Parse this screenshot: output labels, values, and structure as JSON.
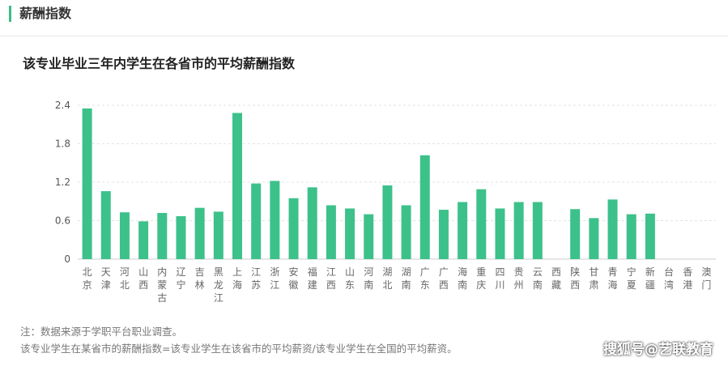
{
  "section": {
    "title": "薪酬指数"
  },
  "chart_data": {
    "type": "bar",
    "title": "该专业毕业三年内学生在各省市的平均薪酬指数",
    "categories": [
      "北京",
      "天津",
      "河北",
      "山西",
      "内蒙古",
      "辽宁",
      "吉林",
      "黑龙江",
      "上海",
      "江苏",
      "浙江",
      "安徽",
      "福建",
      "江西",
      "山东",
      "河南",
      "湖北",
      "湖南",
      "广东",
      "广西",
      "海南",
      "重庆",
      "四川",
      "贵州",
      "云南",
      "西藏",
      "陕西",
      "甘肃",
      "青海",
      "宁夏",
      "新疆",
      "台湾",
      "香港",
      "澳门"
    ],
    "values": [
      2.35,
      1.06,
      0.73,
      0.59,
      0.72,
      0.67,
      0.8,
      0.74,
      2.28,
      1.18,
      1.22,
      0.95,
      1.12,
      0.84,
      0.79,
      0.7,
      1.15,
      0.84,
      1.62,
      0.77,
      0.89,
      1.09,
      0.79,
      0.89,
      0.89,
      null,
      0.78,
      0.64,
      0.93,
      0.7,
      0.71,
      null,
      null,
      null
    ],
    "y_ticks": [
      "0",
      "0.6",
      "1.2",
      "1.8",
      "2.4"
    ],
    "ylim": [
      0,
      2.4
    ],
    "grid": true,
    "bar_color": "#3cc18a"
  },
  "notes": {
    "source": "注：数据来源于学职平台职业调查。",
    "formula": "该专业学生在某省市的薪酬指数=该专业学生在该省市的平均薪资/该专业学生在全国的平均薪资。"
  },
  "watermark": {
    "text": "搜狐号@艺联教育"
  }
}
